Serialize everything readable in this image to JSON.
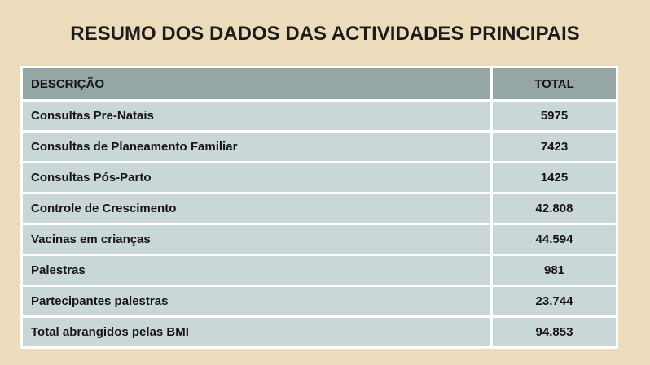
{
  "slide": {
    "title": "RESUMO DOS DADOS DAS ACTIVIDADES PRINCIPAIS"
  },
  "colors": {
    "slide_background": "#ecdcbb",
    "title_text": "#1d1b19",
    "table_header_bg": "#94a7a5",
    "table_row_bg": "#c9d8d6",
    "table_gutter": "#ffffff",
    "table_text": "#161514"
  },
  "table": {
    "headers": {
      "description": "DESCRIÇÃO",
      "total": "TOTAL"
    },
    "rows": [
      {
        "description": "Consultas Pre-Natais",
        "total": "5975"
      },
      {
        "description": "Consultas de Planeamento Familiar",
        "total": "7423"
      },
      {
        "description": "Consultas Pós-Parto",
        "total": "1425"
      },
      {
        "description": "Controle de Crescimento",
        "total": "42.808"
      },
      {
        "description": "Vacinas em crianças",
        "total": "44.594"
      },
      {
        "description": "Palestras",
        "total": "981"
      },
      {
        "description": "Partecipantes palestras",
        "total": "23.744"
      },
      {
        "description": "Total abrangidos pelas BMI",
        "total": "94.853"
      }
    ]
  }
}
